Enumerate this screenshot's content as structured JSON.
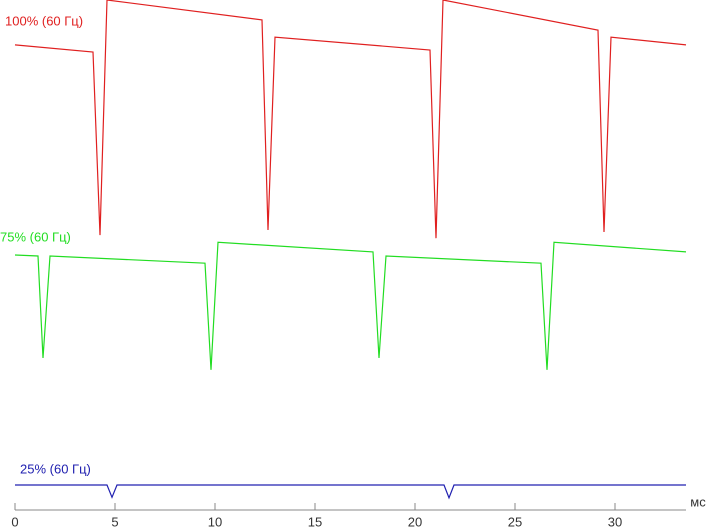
{
  "chart_data": {
    "type": "line",
    "x_label": "мс",
    "xlim": [
      0,
      33.55
    ],
    "ylim": [
      0,
      100
    ],
    "xticks": [
      0,
      5,
      10,
      15,
      20,
      25,
      30
    ],
    "series": [
      {
        "name": "100% (60 Гц)",
        "color": "#e02020",
        "x": [
          0,
          3.9,
          4.25,
          4.6,
          12.35,
          12.65,
          13.0,
          20.75,
          21.05,
          21.4,
          29.15,
          29.45,
          29.8,
          33.55
        ],
        "values": [
          91.2,
          89.8,
          53.9,
          100,
          96.1,
          54.9,
          92.7,
          90.2,
          53.3,
          100,
          94.1,
          54.5,
          92.7,
          91.2
        ]
      },
      {
        "name": "75% (60 Гц)",
        "color": "#22dd22",
        "x": [
          0,
          1.15,
          1.4,
          1.75,
          9.5,
          9.8,
          10.15,
          17.9,
          18.2,
          18.55,
          26.3,
          26.6,
          26.95,
          33.55
        ],
        "values": [
          50,
          49.8,
          29.8,
          49.8,
          48.4,
          27.5,
          52.5,
          50.6,
          29.8,
          49.8,
          48.4,
          27.5,
          52.5,
          50.6
        ]
      },
      {
        "name": "25% (60 Гц)",
        "color": "#2020b0",
        "x": [
          0,
          4.6,
          4.85,
          5.1,
          21.45,
          21.7,
          21.95,
          33.55
        ],
        "values": [
          4.9,
          4.9,
          2.5,
          4.9,
          4.9,
          2.4,
          4.9,
          4.9
        ]
      }
    ]
  }
}
